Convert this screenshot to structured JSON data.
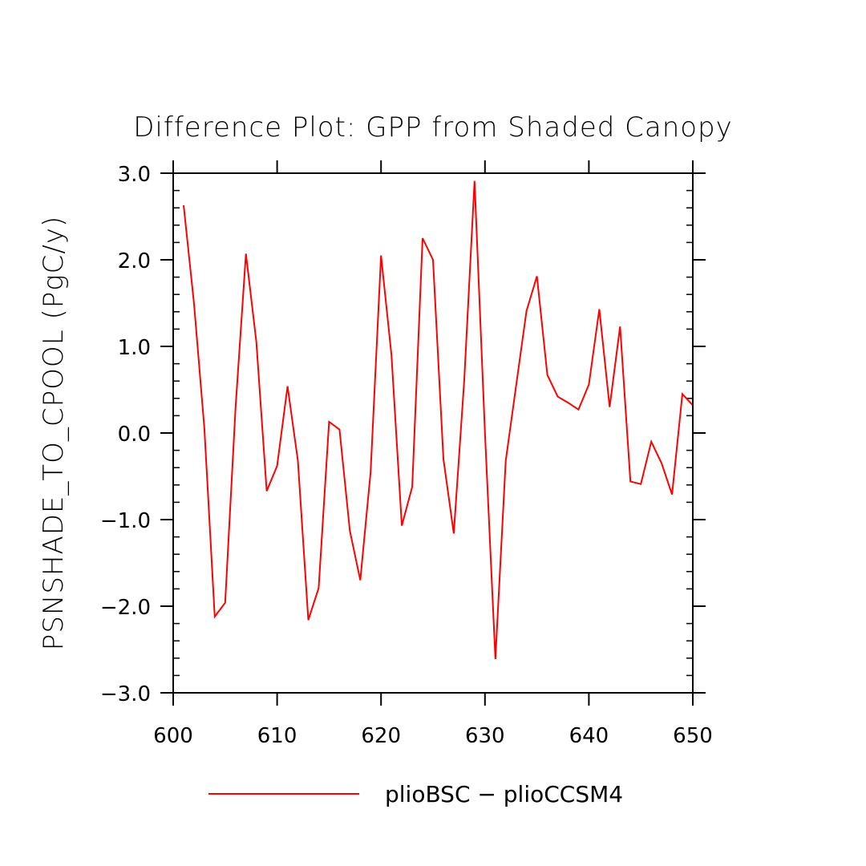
{
  "chart_data": {
    "type": "line",
    "title": "Difference Plot: GPP from Shaded Canopy",
    "xlabel": "",
    "ylabel": "PSNSHADE_TO_CPOOL  (PgC/y)",
    "xlim": [
      600,
      650
    ],
    "ylim": [
      -3.0,
      3.0
    ],
    "x_ticks": [
      600,
      610,
      620,
      630,
      640,
      650
    ],
    "x_tick_labels": [
      "600",
      "610",
      "620",
      "630",
      "640",
      "650"
    ],
    "y_ticks": [
      -3.0,
      -2.0,
      -1.0,
      0.0,
      1.0,
      2.0,
      3.0
    ],
    "y_tick_labels": [
      "−3.0",
      "−2.0",
      "−1.0",
      "0.0",
      "1.0",
      "2.0",
      "3.0"
    ],
    "legend_position": "bottom",
    "series": [
      {
        "name": "plioBSC − plioCCSM4",
        "color": "#ff0000",
        "x": [
          601,
          602,
          603,
          604,
          605,
          606,
          607,
          608,
          609,
          610,
          611,
          612,
          613,
          614,
          615,
          616,
          617,
          618,
          619,
          620,
          621,
          622,
          623,
          624,
          625,
          626,
          627,
          628,
          629,
          630,
          631,
          632,
          633,
          634,
          635,
          636,
          637,
          638,
          639,
          640,
          641,
          642,
          643,
          644,
          645,
          646,
          647,
          648,
          649,
          650
        ],
        "y": [
          2.63,
          1.5,
          0.05,
          -2.12,
          -1.96,
          0.3,
          2.07,
          1.05,
          -0.67,
          -0.38,
          0.54,
          -0.32,
          -2.16,
          -1.79,
          0.13,
          0.04,
          -1.13,
          -1.7,
          -0.45,
          2.05,
          0.9,
          -1.07,
          -0.62,
          2.25,
          2.0,
          -0.3,
          -1.16,
          0.6,
          2.91,
          0.0,
          -2.61,
          -0.32,
          0.55,
          1.41,
          1.81,
          0.67,
          0.42,
          0.35,
          0.27,
          0.56,
          1.43,
          0.3,
          1.23,
          -0.56,
          -0.59,
          -0.1,
          -0.35,
          -0.71,
          0.45,
          0.32
        ]
      }
    ]
  }
}
